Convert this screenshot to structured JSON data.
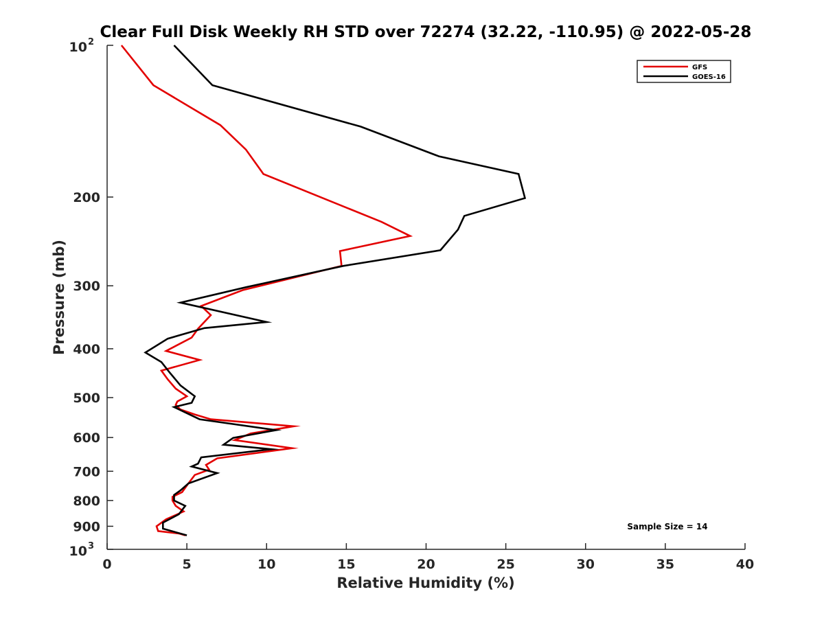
{
  "chart_data": {
    "type": "line",
    "title": "Clear Full Disk Weekly RH STD over 72274 (32.22, -110.95) @ 2022-05-28",
    "xlabel": "Relative Humidity (%)",
    "ylabel": "Pressure (mb)",
    "xlim": [
      0,
      40
    ],
    "ylim": [
      100,
      1000
    ],
    "yscale": "log",
    "y_reversed": true,
    "x_ticks": [
      "0",
      "5",
      "10",
      "15",
      "20",
      "25",
      "30",
      "35",
      "40"
    ],
    "y_ticks": [
      {
        "value": 100,
        "base": "10",
        "exp": "2"
      },
      {
        "value": 200,
        "label": "200"
      },
      {
        "value": 300,
        "label": "300"
      },
      {
        "value": 400,
        "label": "400"
      },
      {
        "value": 500,
        "label": "500"
      },
      {
        "value": 600,
        "label": "600"
      },
      {
        "value": 700,
        "label": "700"
      },
      {
        "value": 800,
        "label": "800"
      },
      {
        "value": 900,
        "label": "900"
      },
      {
        "value": 1000,
        "base": "10",
        "exp": "3"
      }
    ],
    "grid": false,
    "legend_position": "top-right",
    "annotation": "Sample Size = 14",
    "series": [
      {
        "name": "GFS",
        "color": "#e30000",
        "points": [
          [
            0.9,
            100
          ],
          [
            2.9,
            120
          ],
          [
            7.1,
            144
          ],
          [
            8.7,
            161
          ],
          [
            9.8,
            180
          ],
          [
            17.2,
            224
          ],
          [
            19.0,
            239
          ],
          [
            14.6,
            256
          ],
          [
            14.7,
            274
          ],
          [
            8.5,
            306
          ],
          [
            5.9,
            329
          ],
          [
            6.5,
            343
          ],
          [
            5.7,
            365
          ],
          [
            5.3,
            380
          ],
          [
            3.7,
            404
          ],
          [
            5.8,
            421
          ],
          [
            3.4,
            442
          ],
          [
            3.8,
            460
          ],
          [
            4.3,
            480
          ],
          [
            5.0,
            497
          ],
          [
            4.4,
            509
          ],
          [
            4.3,
            517
          ],
          [
            4.6,
            528
          ],
          [
            5.5,
            540
          ],
          [
            6.5,
            552
          ],
          [
            11.7,
            570
          ],
          [
            9.0,
            589
          ],
          [
            8.0,
            607
          ],
          [
            11.6,
            630
          ],
          [
            6.9,
            660
          ],
          [
            6.2,
            680
          ],
          [
            6.4,
            695
          ],
          [
            5.5,
            712
          ],
          [
            5.1,
            740
          ],
          [
            4.7,
            770
          ],
          [
            4.1,
            787
          ],
          [
            4.1,
            800
          ],
          [
            4.3,
            820
          ],
          [
            4.8,
            841
          ],
          [
            3.7,
            872
          ],
          [
            3.1,
            900
          ],
          [
            3.2,
            920
          ],
          [
            4.5,
            930
          ],
          [
            4.9,
            938
          ]
        ]
      },
      {
        "name": "GOES-16",
        "color": "#000000",
        "points": [
          [
            4.2,
            100
          ],
          [
            6.6,
            120
          ],
          [
            15.9,
            145
          ],
          [
            20.8,
            166
          ],
          [
            25.8,
            180
          ],
          [
            26.2,
            201
          ],
          [
            22.4,
            218
          ],
          [
            22.0,
            232
          ],
          [
            20.9,
            255
          ],
          [
            14.8,
            274
          ],
          [
            8.7,
            302
          ],
          [
            4.6,
            324
          ],
          [
            10.0,
            354
          ],
          [
            6.1,
            364
          ],
          [
            3.8,
            382
          ],
          [
            2.4,
            407
          ],
          [
            3.4,
            425
          ],
          [
            3.9,
            445
          ],
          [
            4.6,
            473
          ],
          [
            5.5,
            497
          ],
          [
            5.3,
            512
          ],
          [
            4.2,
            522
          ],
          [
            5.8,
            552
          ],
          [
            10.6,
            580
          ],
          [
            7.9,
            601
          ],
          [
            7.3,
            620
          ],
          [
            10.3,
            633
          ],
          [
            5.9,
            657
          ],
          [
            5.7,
            676
          ],
          [
            5.3,
            685
          ],
          [
            6.9,
            706
          ],
          [
            5.1,
            740
          ],
          [
            4.6,
            764
          ],
          [
            4.2,
            780
          ],
          [
            4.2,
            800
          ],
          [
            4.9,
            820
          ],
          [
            4.5,
            852
          ],
          [
            3.5,
            885
          ],
          [
            3.5,
            910
          ],
          [
            5.0,
            938
          ]
        ]
      }
    ]
  }
}
